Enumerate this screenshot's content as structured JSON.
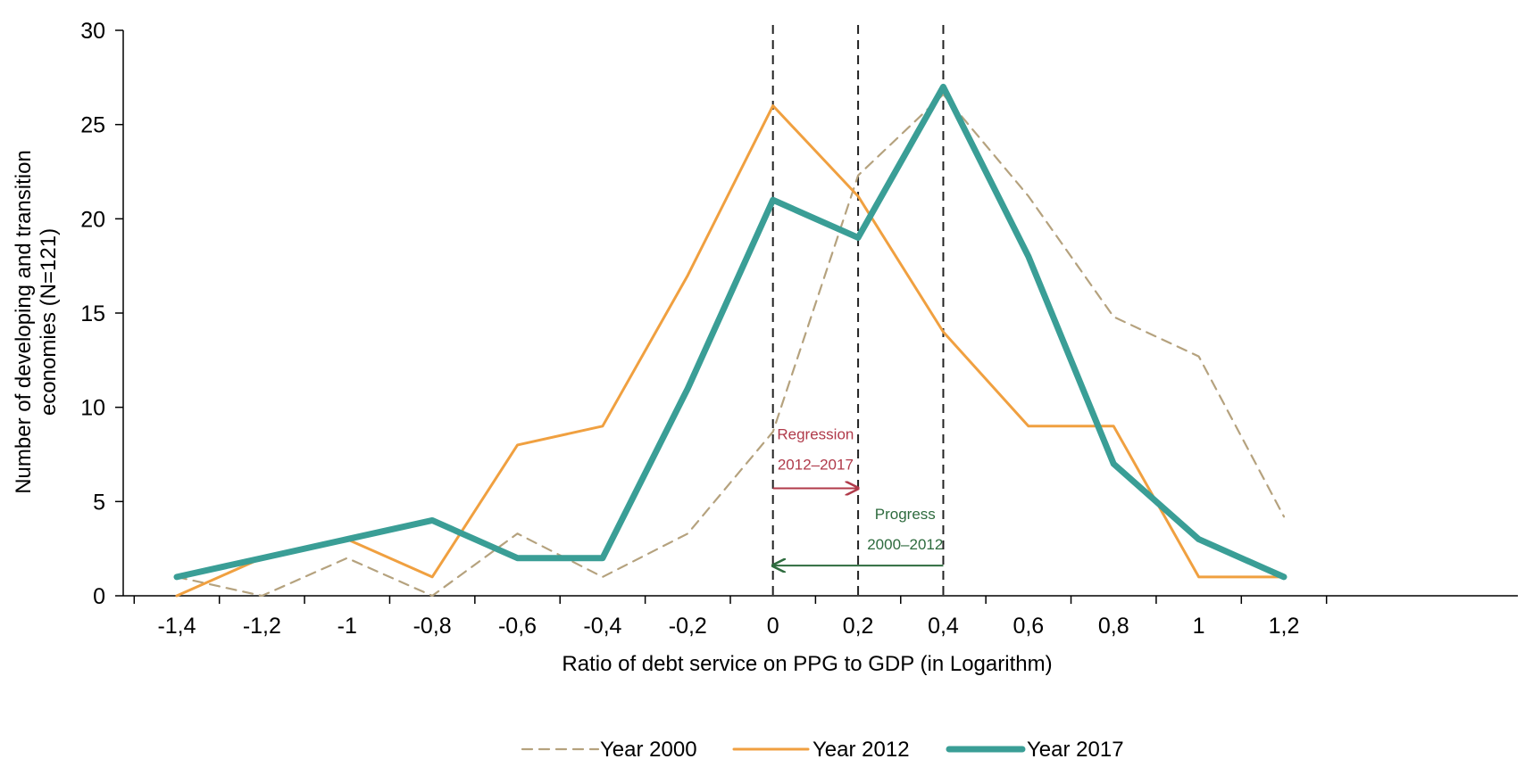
{
  "chart_data": {
    "type": "line",
    "xlabel": "Ratio of debt service on PPG to GDP (in Logarithm)",
    "ylabel_lines": [
      "Number of developing and transition",
      "economies (N=121)"
    ],
    "x": [
      "-1,4",
      "-1,2",
      "-1",
      "-0,8",
      "-0,6",
      "-0,4",
      "-0,2",
      "0",
      "0,2",
      "0,4",
      "0,6",
      "0,8",
      "1",
      "1,2"
    ],
    "x_values": [
      -1.4,
      -1.2,
      -1.0,
      -0.8,
      -0.6,
      -0.4,
      -0.2,
      0.0,
      0.2,
      0.4,
      0.6,
      0.8,
      1.0,
      1.2
    ],
    "xlim": [
      -1.5,
      1.2
    ],
    "ylim": [
      0,
      30
    ],
    "yticks": [
      0,
      5,
      10,
      15,
      20,
      25,
      30
    ],
    "grid": false,
    "legend_position": "bottom-center",
    "series": [
      {
        "name": "Year 2000",
        "style": "dashed",
        "color": "#b5a27e",
        "values": [
          1,
          0,
          2,
          0,
          3.3,
          1,
          3.3,
          8.7,
          22.3,
          26.6,
          21.2,
          14.8,
          12.7,
          4.2
        ]
      },
      {
        "name": "Year 2012",
        "style": "solid",
        "color": "#f0a040",
        "values": [
          0,
          2,
          3,
          1,
          8,
          9,
          17,
          26,
          21.2,
          14,
          9,
          9,
          1,
          1
        ]
      },
      {
        "name": "Year 2017",
        "style": "solid-thick",
        "color": "#3a9e96",
        "values": [
          1,
          2,
          3,
          4,
          2,
          2,
          11,
          21,
          19,
          27,
          18,
          7,
          3,
          1
        ]
      }
    ],
    "vlines": [
      0,
      0.2,
      0.4
    ],
    "annotations": [
      {
        "text_lines": [
          "Regression",
          "2012–2017"
        ],
        "from": 0,
        "to": 0.2,
        "arrow": "right",
        "color": "#b03a4a",
        "arrow_y": 5.7
      },
      {
        "text_lines": [
          "Progress",
          "2000–2012"
        ],
        "from": 0.4,
        "to": 0,
        "arrow": "left",
        "color": "#2e6b3e",
        "arrow_y": 1.6
      }
    ]
  }
}
